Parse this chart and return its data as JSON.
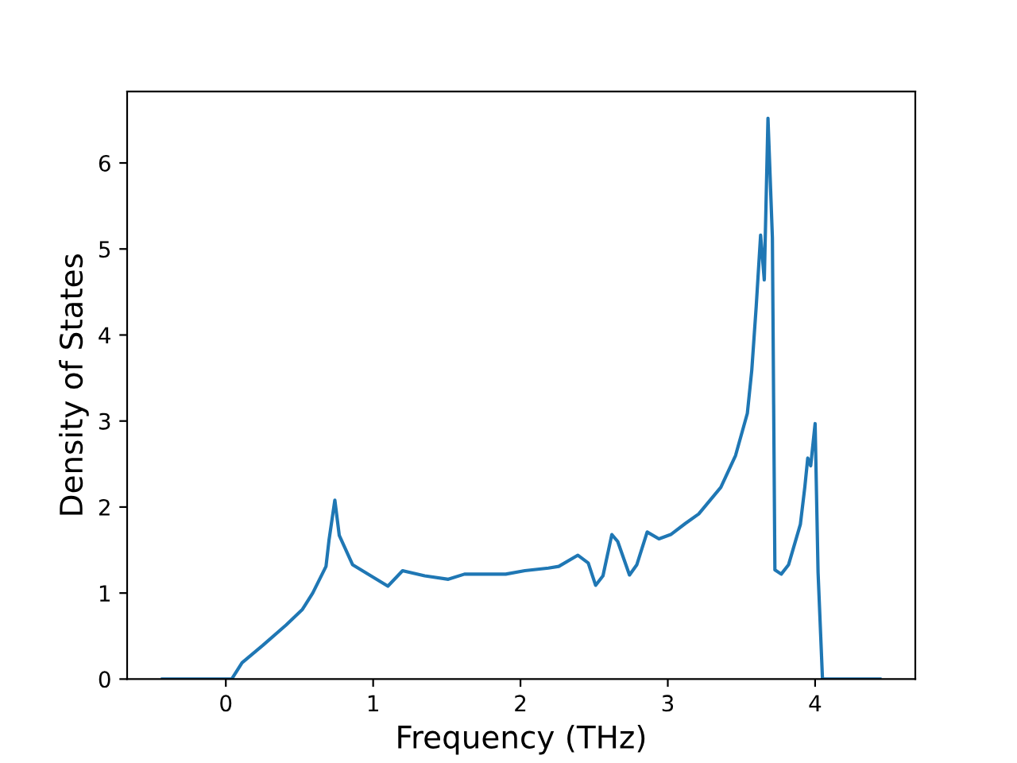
{
  "chart_data": {
    "type": "line",
    "xlabel": "Frequency (THz)",
    "ylabel": "Density of States",
    "xlim": [
      -0.67,
      4.68
    ],
    "ylim": [
      0,
      6.83
    ],
    "xticks": [
      0,
      1,
      2,
      3,
      4
    ],
    "yticks": [
      0,
      1,
      2,
      3,
      4,
      5,
      6
    ],
    "grid": false,
    "legend": false,
    "series": [
      {
        "color": "#1f77b4",
        "x": [
          -0.43,
          0.04,
          0.11,
          0.25,
          0.41,
          0.52,
          0.59,
          0.68,
          0.7,
          0.74,
          0.77,
          0.86,
          1.1,
          1.2,
          1.35,
          1.51,
          1.62,
          1.9,
          2.03,
          2.19,
          2.26,
          2.39,
          2.46,
          2.51,
          2.56,
          2.62,
          2.66,
          2.74,
          2.79,
          2.86,
          2.94,
          3.02,
          3.12,
          3.21,
          3.36,
          3.46,
          3.54,
          3.57,
          3.6,
          3.63,
          3.655,
          3.68,
          3.71,
          3.727,
          3.77,
          3.82,
          3.9,
          3.93,
          3.95,
          3.97,
          4.0,
          4.02,
          4.05,
          4.44
        ],
        "values": [
          0,
          0,
          0.19,
          0.39,
          0.63,
          0.81,
          1.0,
          1.31,
          1.61,
          2.08,
          1.67,
          1.33,
          1.08,
          1.26,
          1.2,
          1.16,
          1.22,
          1.22,
          1.26,
          1.29,
          1.31,
          1.44,
          1.35,
          1.09,
          1.2,
          1.68,
          1.6,
          1.21,
          1.33,
          1.71,
          1.63,
          1.68,
          1.81,
          1.92,
          2.23,
          2.6,
          3.09,
          3.59,
          4.33,
          5.16,
          4.64,
          6.52,
          5.13,
          1.27,
          1.22,
          1.33,
          1.8,
          2.23,
          2.57,
          2.48,
          2.97,
          1.24,
          0,
          0
        ]
      }
    ]
  }
}
